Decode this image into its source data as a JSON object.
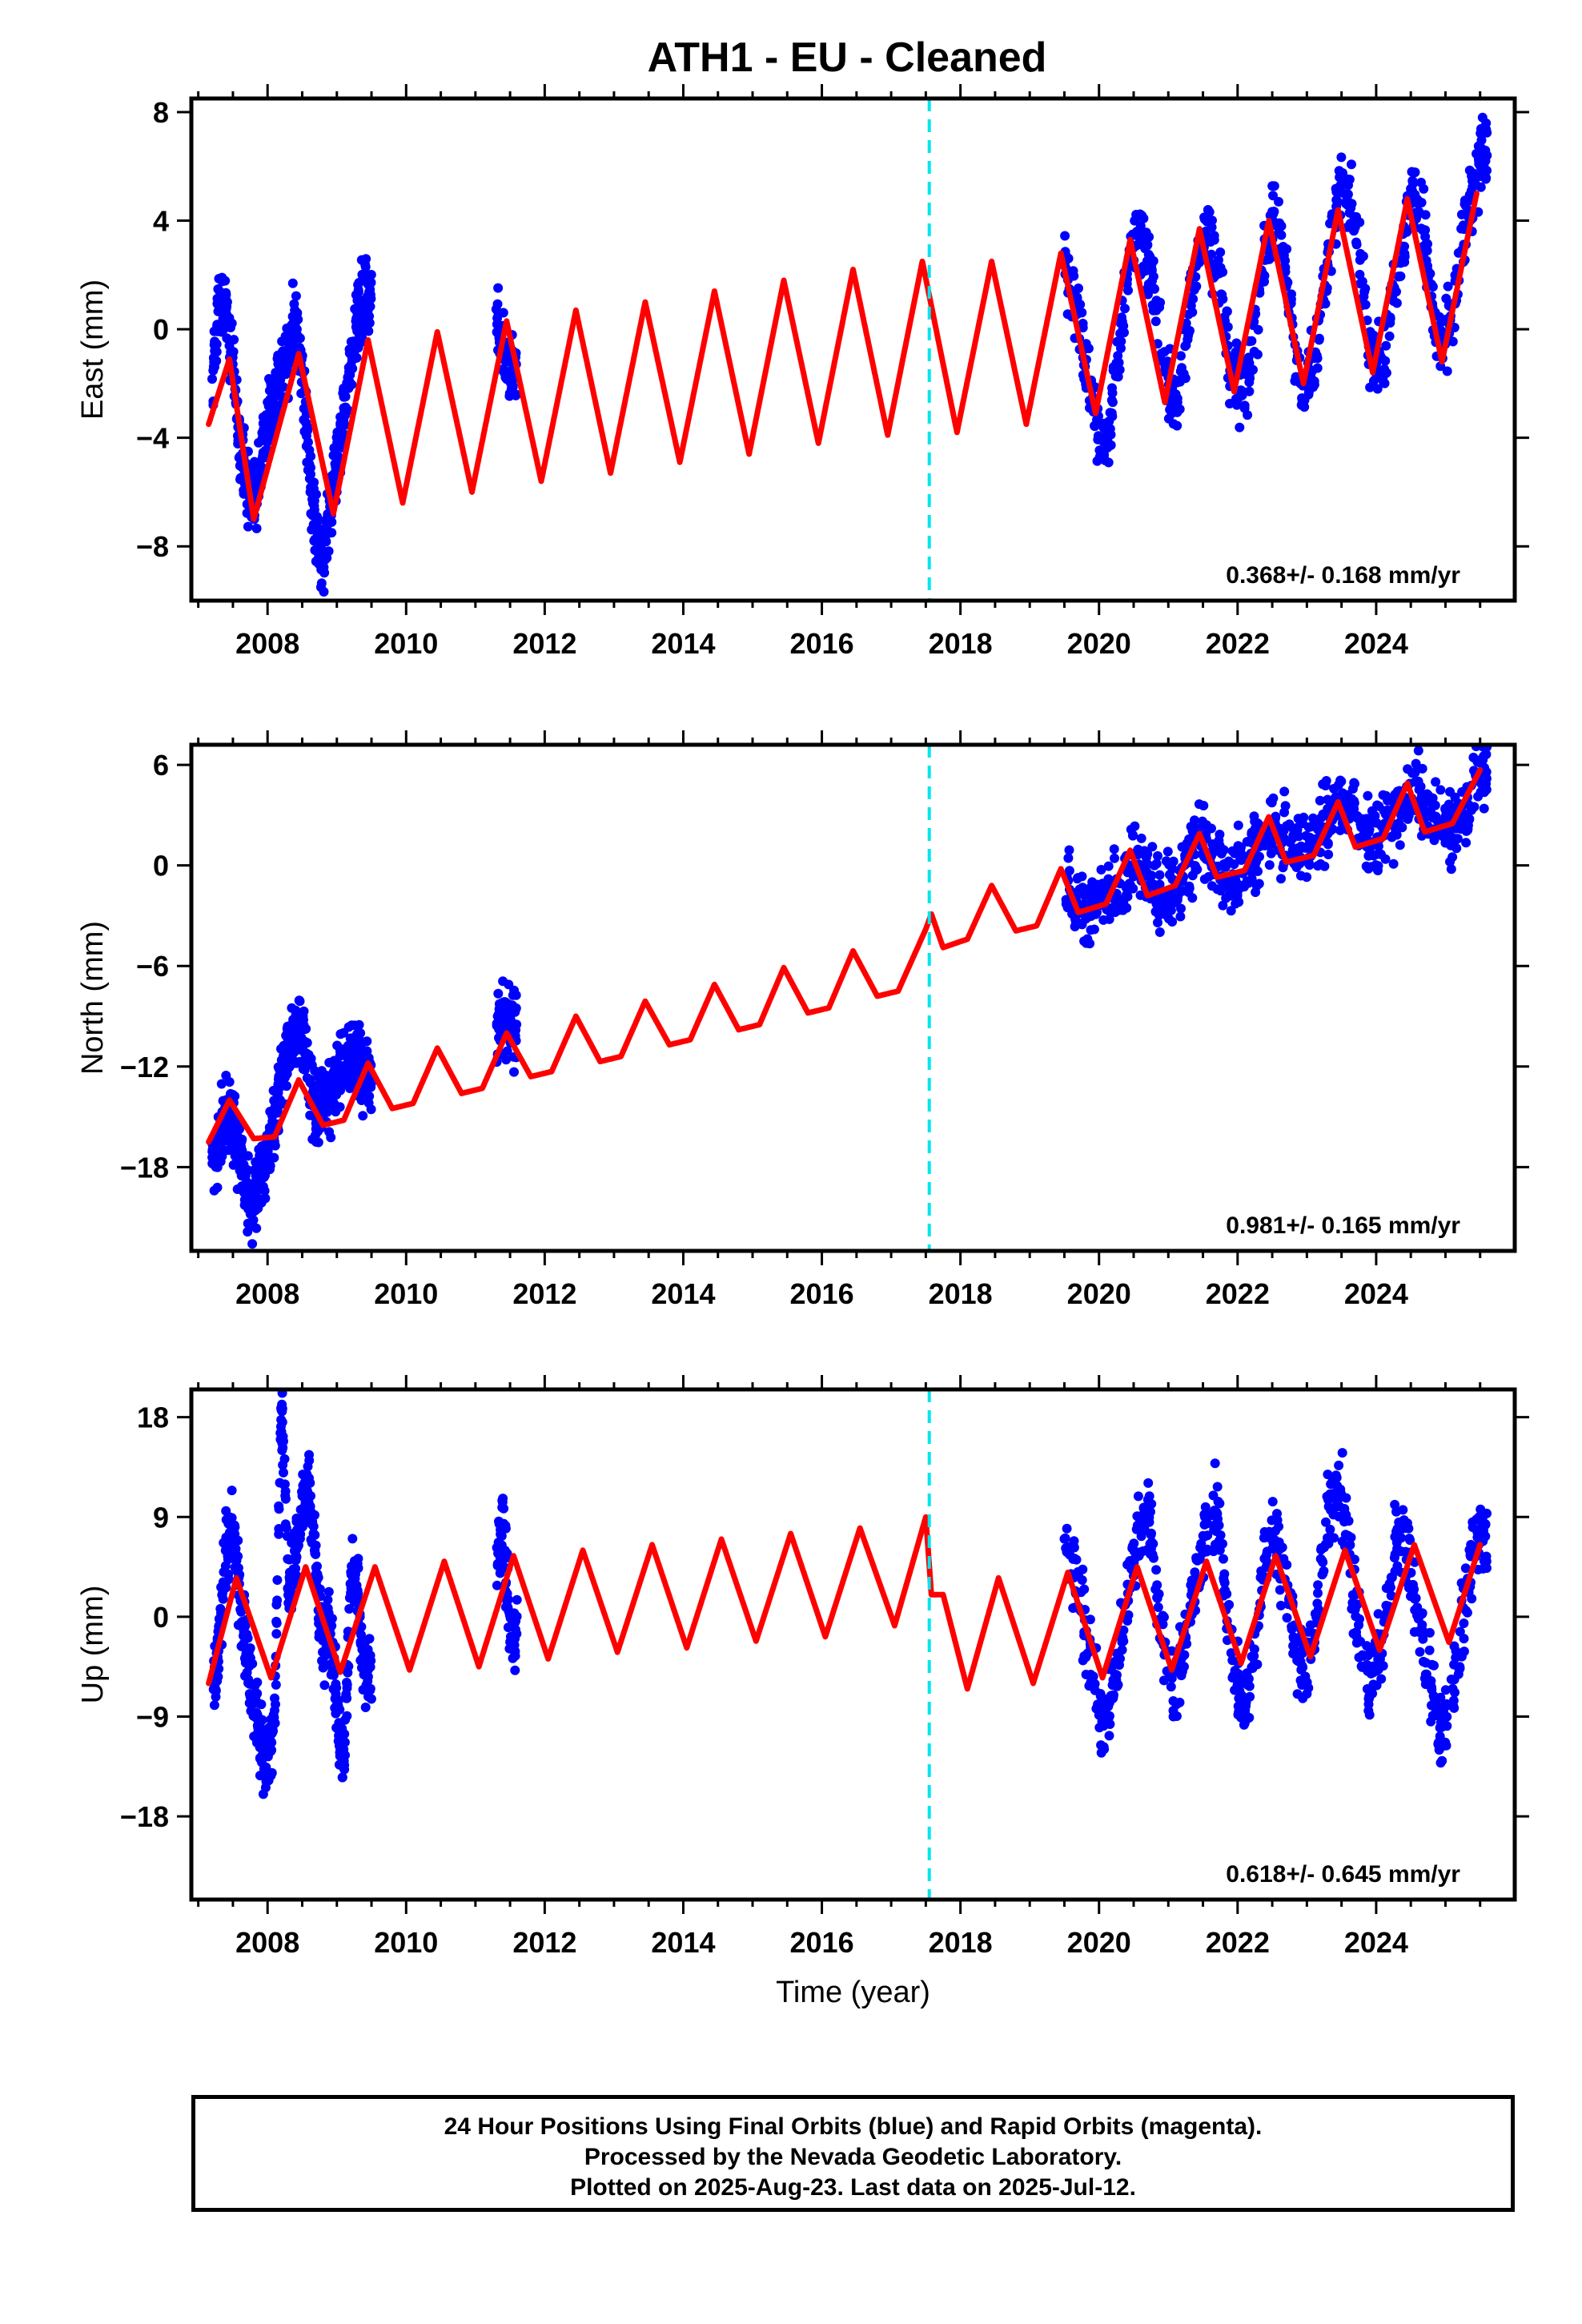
{
  "title": "ATH1  - EU - Cleaned",
  "colors": {
    "data": "#0000ff",
    "model": "#ff0000",
    "break_line": "#00e5ee",
    "axes": "#000000"
  },
  "chart_data": [
    {
      "type": "scatter",
      "component": "East",
      "ylabel": "East (mm)",
      "ylim": [
        -10,
        8.5
      ],
      "yticks": [
        8,
        4,
        0,
        -4,
        -8
      ],
      "xlim": [
        2006.9,
        2026.0
      ],
      "xticks": [
        2008,
        2010,
        2012,
        2014,
        2016,
        2018,
        2020,
        2022,
        2024
      ],
      "rate_label": "0.368+/- 0.168 mm/yr",
      "equipment_change": 2017.55,
      "series": [
        {
          "kind": "observations",
          "x": [
            2007.2,
            2007.3,
            2007.4,
            2007.5,
            2007.6,
            2007.7,
            2007.8,
            2007.9,
            2008.0,
            2008.1,
            2008.2,
            2008.3,
            2008.4,
            2008.5,
            2008.6,
            2008.7,
            2008.8,
            2008.9,
            2009.0,
            2009.1,
            2009.2,
            2009.3,
            2009.4,
            2011.3,
            2011.4,
            2011.5,
            2019.5,
            2019.7,
            2019.9,
            2020.1,
            2020.3,
            2020.5,
            2020.7,
            2020.9,
            2021.1,
            2021.3,
            2021.5,
            2021.7,
            2021.9,
            2022.1,
            2022.3,
            2022.5,
            2022.7,
            2022.9,
            2023.1,
            2023.3,
            2023.5,
            2023.7,
            2023.9,
            2024.1,
            2024.3,
            2024.5,
            2024.7,
            2024.9,
            2025.1,
            2025.3,
            2025.5
          ],
          "y": [
            -2.0,
            1.5,
            0.5,
            -1.5,
            -4.0,
            -6.0,
            -6.5,
            -5.0,
            -3.5,
            -2.5,
            -2.0,
            -1.0,
            0.5,
            -1.5,
            -5.0,
            -7.5,
            -8.5,
            -7.0,
            -5.0,
            -3.0,
            -1.5,
            0.5,
            1.2,
            0.5,
            -0.5,
            -1.5,
            2.5,
            0.5,
            -3.0,
            -4.5,
            -0.5,
            3.5,
            3.0,
            -1.0,
            -3.0,
            0.5,
            4.0,
            2.5,
            -1.5,
            -2.5,
            1.0,
            4.5,
            2.0,
            -2.0,
            -1.5,
            2.5,
            5.5,
            4.0,
            -0.5,
            -1.5,
            2.0,
            5.0,
            3.5,
            -1.0,
            0.5,
            4.0,
            6.5
          ]
        },
        {
          "kind": "model",
          "x": [
            2007.15,
            2007.45,
            2007.8,
            2008.45,
            2008.95,
            2009.45,
            2009.95,
            2010.45,
            2010.95,
            2011.45,
            2011.95,
            2012.45,
            2012.95,
            2013.45,
            2013.95,
            2014.45,
            2014.95,
            2015.45,
            2015.95,
            2016.45,
            2016.95,
            2017.45,
            2017.95,
            2018.45,
            2018.95,
            2019.45,
            2019.95,
            2020.45,
            2020.95,
            2021.45,
            2021.95,
            2022.45,
            2022.95,
            2023.45,
            2023.95,
            2024.45,
            2024.95,
            2025.45
          ],
          "y": [
            -3.5,
            -1.1,
            -7.0,
            -0.9,
            -6.8,
            -0.4,
            -6.4,
            -0.1,
            -6.0,
            0.3,
            -5.6,
            0.7,
            -5.3,
            1.0,
            -4.9,
            1.4,
            -4.6,
            1.8,
            -4.2,
            2.2,
            -3.9,
            2.5,
            -3.8,
            2.5,
            -3.5,
            2.8,
            -3.1,
            3.3,
            -2.7,
            3.7,
            -2.3,
            4.0,
            -2.0,
            4.4,
            -1.6,
            4.8,
            -1.2,
            5.0
          ]
        }
      ]
    },
    {
      "type": "scatter",
      "component": "North",
      "ylabel": "North (mm)",
      "ylim": [
        -23,
        7.2
      ],
      "yticks": [
        6,
        0,
        -6,
        -12,
        -18
      ],
      "xlim": [
        2006.9,
        2026.0
      ],
      "xticks": [
        2008,
        2010,
        2012,
        2014,
        2016,
        2018,
        2020,
        2022,
        2024
      ],
      "rate_label": "0.981+/- 0.165 mm/yr",
      "equipment_change": 2017.55,
      "series": [
        {
          "kind": "observations",
          "x": [
            2007.2,
            2007.3,
            2007.4,
            2007.5,
            2007.6,
            2007.7,
            2007.8,
            2007.9,
            2008.0,
            2008.1,
            2008.2,
            2008.3,
            2008.4,
            2008.5,
            2008.6,
            2008.7,
            2008.8,
            2008.9,
            2009.0,
            2009.1,
            2009.2,
            2009.3,
            2009.4,
            2011.3,
            2011.4,
            2011.5,
            2019.5,
            2019.7,
            2019.9,
            2020.1,
            2020.3,
            2020.5,
            2020.7,
            2020.9,
            2021.1,
            2021.3,
            2021.5,
            2021.7,
            2021.9,
            2022.1,
            2022.3,
            2022.5,
            2022.7,
            2022.9,
            2023.1,
            2023.3,
            2023.5,
            2023.7,
            2023.9,
            2024.1,
            2024.3,
            2024.5,
            2024.7,
            2024.9,
            2025.1,
            2025.3,
            2025.5
          ],
          "y": [
            -18.5,
            -16.5,
            -14.5,
            -15.5,
            -17.0,
            -19.5,
            -20.5,
            -18.0,
            -17.0,
            -14.5,
            -12.5,
            -11.0,
            -10.0,
            -9.5,
            -13.0,
            -15.0,
            -14.0,
            -13.5,
            -13.0,
            -12.0,
            -11.5,
            -11.5,
            -12.5,
            -10.0,
            -9.0,
            -9.5,
            -1.0,
            -2.5,
            -3.0,
            -1.5,
            -1.0,
            0.5,
            0.0,
            -2.0,
            -1.0,
            0.0,
            1.5,
            0.0,
            -1.0,
            0.0,
            1.0,
            2.5,
            1.5,
            0.5,
            1.5,
            2.5,
            4.0,
            3.0,
            1.5,
            2.0,
            3.0,
            4.5,
            3.5,
            2.5,
            2.5,
            3.5,
            5.5
          ]
        },
        {
          "kind": "model",
          "x": [
            2007.15,
            2007.45,
            2007.8,
            2008.1,
            2008.45,
            2008.8,
            2009.1,
            2009.45,
            2009.8,
            2010.1,
            2010.45,
            2010.8,
            2011.1,
            2011.45,
            2011.8,
            2012.1,
            2012.45,
            2012.8,
            2013.1,
            2013.45,
            2013.8,
            2014.1,
            2014.45,
            2014.8,
            2015.1,
            2015.45,
            2015.8,
            2016.1,
            2016.45,
            2016.8,
            2017.1,
            2017.5,
            2017.58,
            2017.75,
            2018.1,
            2018.45,
            2018.8,
            2019.1,
            2019.45,
            2019.7,
            2020.1,
            2020.45,
            2020.7,
            2021.1,
            2021.45,
            2021.7,
            2022.1,
            2022.45,
            2022.7,
            2023.1,
            2023.45,
            2023.7,
            2024.1,
            2024.45,
            2024.7,
            2025.1,
            2025.5
          ],
          "y": [
            -16.5,
            -14.0,
            -16.3,
            -16.2,
            -12.8,
            -15.5,
            -15.2,
            -11.8,
            -14.5,
            -14.2,
            -10.9,
            -13.6,
            -13.3,
            -10.0,
            -12.6,
            -12.3,
            -9.0,
            -11.7,
            -11.4,
            -8.1,
            -10.7,
            -10.4,
            -7.1,
            -9.8,
            -9.5,
            -6.1,
            -8.8,
            -8.5,
            -5.1,
            -7.8,
            -7.5,
            -3.8,
            -2.9,
            -4.9,
            -4.4,
            -1.2,
            -3.9,
            -3.6,
            -0.2,
            -2.8,
            -2.3,
            0.9,
            -1.8,
            -1.2,
            1.9,
            -0.7,
            -0.3,
            2.9,
            0.2,
            0.6,
            3.8,
            1.1,
            1.6,
            4.9,
            2.0,
            2.5,
            5.7
          ]
        }
      ]
    },
    {
      "type": "scatter",
      "component": "Up",
      "ylabel": "Up (mm)",
      "ylim": [
        -25.5,
        20.5
      ],
      "yticks": [
        18,
        9,
        0,
        -9,
        -18
      ],
      "xlim": [
        2006.9,
        2026.0
      ],
      "xticks": [
        2008,
        2010,
        2012,
        2014,
        2016,
        2018,
        2020,
        2022,
        2024
      ],
      "xlabel": "Time (year)",
      "rate_label": "0.618+/- 0.645 mm/yr",
      "equipment_change": 2017.55,
      "series": [
        {
          "kind": "observations",
          "x": [
            2007.2,
            2007.3,
            2007.4,
            2007.5,
            2007.6,
            2007.7,
            2007.8,
            2007.9,
            2008.0,
            2008.1,
            2008.2,
            2008.3,
            2008.4,
            2008.5,
            2008.6,
            2008.7,
            2008.8,
            2008.9,
            2009.0,
            2009.1,
            2009.2,
            2009.3,
            2009.4,
            2011.3,
            2011.4,
            2011.5,
            2019.5,
            2019.7,
            2019.9,
            2020.1,
            2020.3,
            2020.5,
            2020.7,
            2020.9,
            2021.1,
            2021.3,
            2021.5,
            2021.7,
            2021.9,
            2022.1,
            2022.3,
            2022.5,
            2022.7,
            2022.9,
            2023.1,
            2023.3,
            2023.5,
            2023.7,
            2023.9,
            2024.1,
            2024.3,
            2024.5,
            2024.7,
            2024.9,
            2025.1,
            2025.3,
            2025.5
          ],
          "y": [
            -8.0,
            -2.0,
            6.0,
            8.5,
            2.0,
            -3.0,
            -8.0,
            -11.0,
            -14.0,
            -9.0,
            19.0,
            3.0,
            6.0,
            10.0,
            12.0,
            4.0,
            -3.0,
            -1.0,
            -8.0,
            -14.0,
            3.5,
            2.0,
            -5.0,
            5.0,
            8.0,
            -1.0,
            8.0,
            2.0,
            -5.0,
            -10.0,
            -3.0,
            6.0,
            9.0,
            -1.0,
            -8.0,
            0.0,
            7.0,
            10.0,
            -3.0,
            -9.0,
            1.0,
            8.0,
            3.0,
            -5.0,
            -2.0,
            9.0,
            12.0,
            1.0,
            -6.0,
            -2.0,
            7.0,
            4.0,
            -3.0,
            -10.0,
            -8.0,
            3.0,
            8.0
          ]
        },
        {
          "kind": "model",
          "x": [
            2007.15,
            2007.55,
            2008.05,
            2008.55,
            2009.05,
            2009.55,
            2010.05,
            2010.55,
            2011.05,
            2011.55,
            2012.05,
            2012.55,
            2013.05,
            2013.55,
            2014.05,
            2014.55,
            2015.05,
            2015.55,
            2016.05,
            2016.55,
            2017.05,
            2017.5,
            2017.58,
            2017.75,
            2018.1,
            2018.55,
            2019.05,
            2019.55,
            2020.05,
            2020.55,
            2021.05,
            2021.55,
            2022.05,
            2022.55,
            2023.05,
            2023.55,
            2024.05,
            2024.55,
            2025.05,
            2025.5
          ],
          "y": [
            -6.0,
            3.5,
            -5.5,
            4.5,
            -5.0,
            4.5,
            -4.8,
            5.0,
            -4.5,
            5.5,
            -3.8,
            6.0,
            -3.2,
            6.5,
            -2.8,
            7.0,
            -2.2,
            7.5,
            -1.8,
            8.0,
            -0.8,
            9.0,
            2.0,
            2.0,
            -6.5,
            3.5,
            -6.0,
            4.0,
            -5.5,
            4.5,
            -4.8,
            5.0,
            -4.2,
            5.5,
            -3.6,
            6.0,
            -3.0,
            6.5,
            -2.3,
            6.5
          ]
        }
      ]
    }
  ],
  "footer": {
    "line1": "24 Hour Positions Using Final Orbits (blue) and Rapid Orbits (magenta).",
    "line2": "Processed by the Nevada Geodetic Laboratory.",
    "line3": "Plotted on 2025-Aug-23. Last data on 2025-Jul-12."
  }
}
